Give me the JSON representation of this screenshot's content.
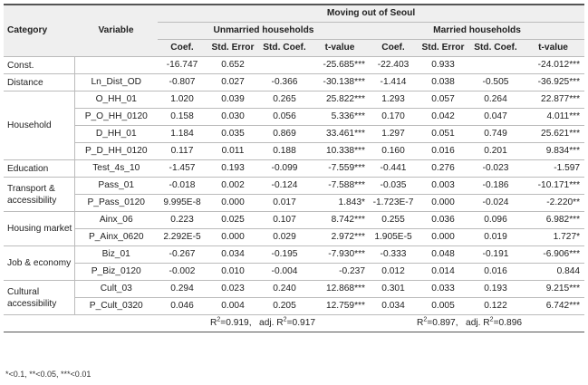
{
  "header": {
    "category": "Category",
    "variable": "Variable",
    "group_title": "Moving out of Seoul",
    "unmarried": "Unmarried households",
    "married": "Married households",
    "cols": [
      "Coef.",
      "Std. Error",
      "Std. Coef.",
      "t-value",
      "Coef.",
      "Std. Error",
      "Std. Coef.",
      "t-value"
    ]
  },
  "rows": [
    {
      "category": "Const.",
      "variable": "",
      "vals": [
        "-16.747",
        "0.652",
        "",
        "-25.685***",
        "-22.403",
        "0.933",
        "",
        "-24.012***"
      ]
    },
    {
      "category": "Distance",
      "variable": "Ln_Dist_OD",
      "vals": [
        "-0.807",
        "0.027",
        "-0.366",
        "-30.138***",
        "-1.414",
        "0.038",
        "-0.505",
        "-36.925***"
      ]
    },
    {
      "category": "Household",
      "variable": "O_HH_01",
      "vals": [
        "1.020",
        "0.039",
        "0.265",
        "25.822***",
        "1.293",
        "0.057",
        "0.264",
        "22.877***"
      ]
    },
    {
      "category": "",
      "variable": "P_O_HH_0120",
      "vals": [
        "0.158",
        "0.030",
        "0.056",
        "5.336***",
        "0.170",
        "0.042",
        "0.047",
        "4.011***"
      ]
    },
    {
      "category": "",
      "variable": "D_HH_01",
      "vals": [
        "1.184",
        "0.035",
        "0.869",
        "33.461***",
        "1.297",
        "0.051",
        "0.749",
        "25.621***"
      ]
    },
    {
      "category": "",
      "variable": "P_D_HH_0120",
      "vals": [
        "0.117",
        "0.011",
        "0.188",
        "10.338***",
        "0.160",
        "0.016",
        "0.201",
        "9.834***"
      ]
    },
    {
      "category": "Education",
      "variable": "Test_4s_10",
      "vals": [
        "-1.457",
        "0.193",
        "-0.099",
        "-7.559***",
        "-0.441",
        "0.276",
        "-0.023",
        "-1.597"
      ]
    },
    {
      "category": "Transport & accessibility",
      "variable": "Pass_01",
      "vals": [
        "-0.018",
        "0.002",
        "-0.124",
        "-7.588***",
        "-0.035",
        "0.003",
        "-0.186",
        "-10.171***"
      ]
    },
    {
      "category": "",
      "variable": "P_Pass_0120",
      "vals": [
        "9.995E-8",
        "0.000",
        "0.017",
        "1.843*",
        "-1.723E-7",
        "0.000",
        "-0.024",
        "-2.220**"
      ]
    },
    {
      "category": "Housing market",
      "variable": "Ainx_06",
      "vals": [
        "0.223",
        "0.025",
        "0.107",
        "8.742***",
        "0.255",
        "0.036",
        "0.096",
        "6.982***"
      ]
    },
    {
      "category": "",
      "variable": "P_Ainx_0620",
      "vals": [
        "2.292E-5",
        "0.000",
        "0.029",
        "2.972***",
        "1.905E-5",
        "0.000",
        "0.019",
        "1.727*"
      ]
    },
    {
      "category": "Job & economy",
      "variable": "Biz_01",
      "vals": [
        "-0.267",
        "0.034",
        "-0.195",
        "-7.930***",
        "-0.333",
        "0.048",
        "-0.191",
        "-6.906***"
      ]
    },
    {
      "category": "",
      "variable": "P_Biz_0120",
      "vals": [
        "-0.002",
        "0.010",
        "-0.004",
        "-0.237",
        "0.012",
        "0.014",
        "0.016",
        "0.844"
      ]
    },
    {
      "category": "Cultural accessibility",
      "variable": "Cult_03",
      "vals": [
        "0.294",
        "0.023",
        "0.240",
        "12.868***",
        "0.301",
        "0.033",
        "0.193",
        "9.215***"
      ]
    },
    {
      "category": "",
      "variable": "P_Cult_0320",
      "vals": [
        "0.046",
        "0.004",
        "0.205",
        "12.759***",
        "0.034",
        "0.005",
        "0.122",
        "6.742***"
      ]
    }
  ],
  "fit": {
    "unmarried_r2_value": "=0.919,",
    "unmarried_adj_prefix": "adj. R",
    "unmarried_adj_value": "=0.917",
    "married_r2_value": "=0.897,",
    "married_adj_prefix": "adj. R",
    "married_adj_value": "=0.896",
    "r_letter": "R",
    "squared": "2"
  },
  "footnote": "*<0.1, **<0.05, ***<0.01"
}
